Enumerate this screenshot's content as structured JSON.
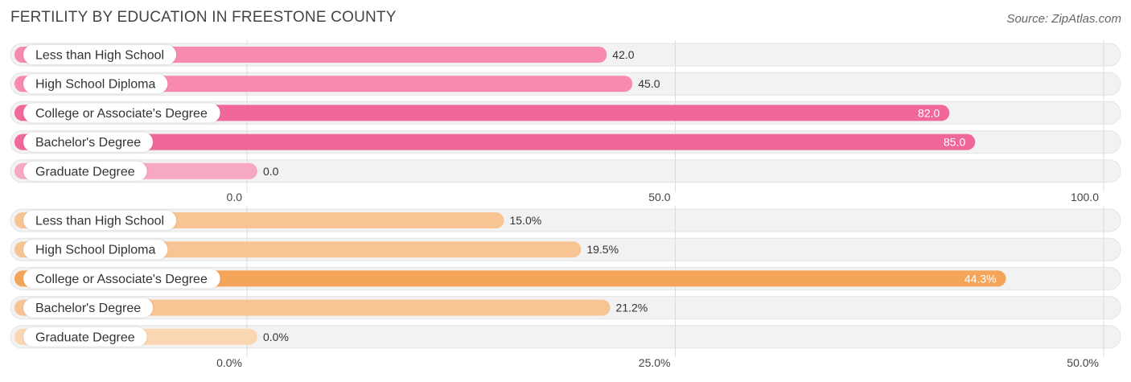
{
  "header": {
    "title": "FERTILITY BY EDUCATION IN FREESTONE COUNTY",
    "source": "Source: ZipAtlas.com"
  },
  "chart_data": [
    {
      "type": "bar",
      "orientation": "horizontal",
      "categories": [
        "Less than High School",
        "High School Diploma",
        "College or Associate's Degree",
        "Bachelor's Degree",
        "Graduate Degree"
      ],
      "values": [
        42.0,
        45.0,
        82.0,
        85.0,
        0.0
      ],
      "value_labels": [
        "42.0",
        "45.0",
        "82.0",
        "85.0",
        "0.0"
      ],
      "xlim": [
        0,
        100
      ],
      "ticks": [
        0,
        50,
        100
      ],
      "tick_labels": [
        "0.0",
        "50.0",
        "100.0"
      ],
      "colors": [
        "#f78aad",
        "#f78aad",
        "#f0679a",
        "#f0679a",
        "#f7a8c4"
      ],
      "grid": true
    },
    {
      "type": "bar",
      "orientation": "horizontal",
      "categories": [
        "Less than High School",
        "High School Diploma",
        "College or Associate's Degree",
        "Bachelor's Degree",
        "Graduate Degree"
      ],
      "values": [
        15.0,
        19.5,
        44.3,
        21.2,
        0.0
      ],
      "value_labels": [
        "15.0%",
        "19.5%",
        "44.3%",
        "21.2%",
        "0.0%"
      ],
      "xlim": [
        0,
        50
      ],
      "ticks": [
        0,
        25,
        50
      ],
      "tick_labels": [
        "0.0%",
        "25.0%",
        "50.0%"
      ],
      "colors": [
        "#f9c493",
        "#f9c493",
        "#f5a55a",
        "#f9c493",
        "#fbd6b3"
      ],
      "grid": true
    }
  ]
}
